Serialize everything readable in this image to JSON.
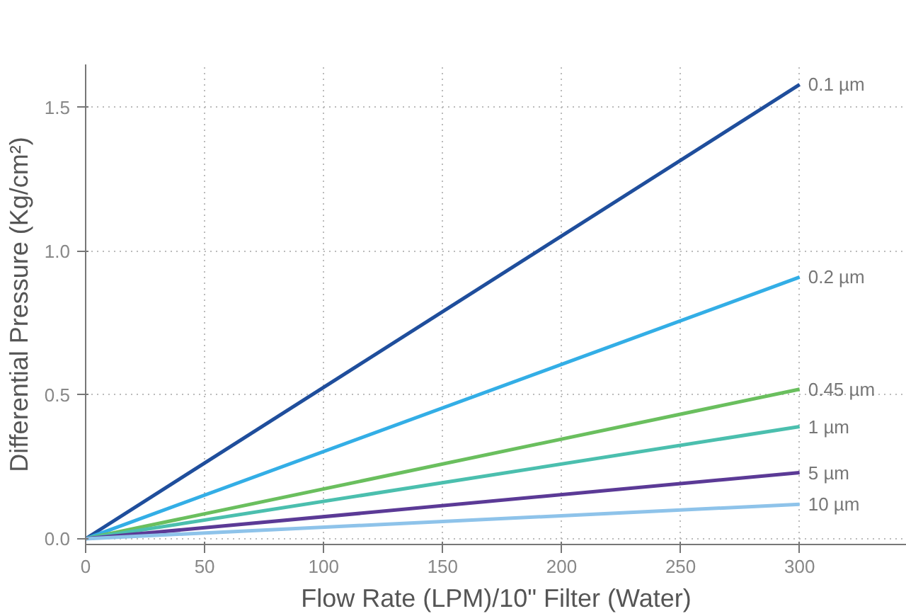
{
  "chart_data": {
    "type": "line",
    "xlabel": "Flow Rate (LPM)/10\" Filter (Water)",
    "ylabel": "Differential Pressure (Kg/cm²)",
    "x": [
      0,
      300
    ],
    "series": [
      {
        "name": "0.1 µm",
        "color": "#1f4e9c",
        "values": [
          0,
          1.58
        ]
      },
      {
        "name": "0.2 µm",
        "color": "#33aee6",
        "values": [
          0,
          0.91
        ]
      },
      {
        "name": "0.45 µm",
        "color": "#6abf5e",
        "values": [
          0,
          0.52
        ]
      },
      {
        "name": "1 µm",
        "color": "#4bbfae",
        "values": [
          0,
          0.39
        ]
      },
      {
        "name": "5 µm",
        "color": "#5b3a96",
        "values": [
          0,
          0.23
        ]
      },
      {
        "name": "10 µm",
        "color": "#8ec3ea",
        "values": [
          0,
          0.12
        ]
      }
    ],
    "xlim": [
      0,
      345
    ],
    "ylim": [
      -0.02,
      1.65
    ],
    "xticks": [
      0,
      50,
      100,
      150,
      200,
      250,
      300
    ],
    "yticks": [
      {
        "value": 0,
        "label": "0.0"
      },
      0.5,
      {
        "value": 1,
        "label": "1.0"
      },
      1.5
    ],
    "grid": true,
    "legend": false,
    "line_style": "solid",
    "marker": "none"
  }
}
